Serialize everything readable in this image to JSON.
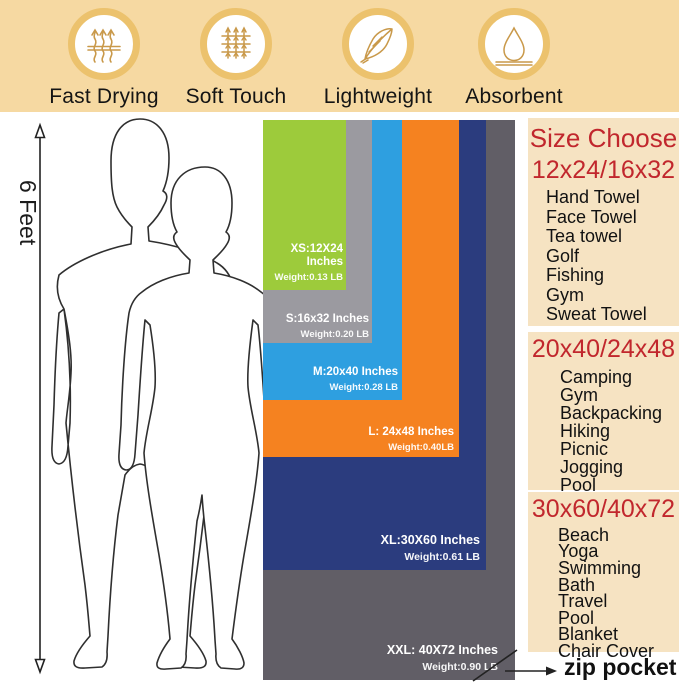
{
  "banner": {
    "features": [
      {
        "label": "Fast Drying",
        "icon": "steam-icon"
      },
      {
        "label": "Soft Touch",
        "icon": "weave-icon"
      },
      {
        "label": "Lightweight",
        "icon": "feather-icon"
      },
      {
        "label": "Absorbent",
        "icon": "droplet-icon"
      }
    ]
  },
  "scale": {
    "label": "6 Feet"
  },
  "towels": [
    {
      "name": "XS",
      "size_line": "XS:12X24 Inches",
      "weight_line": "Weight:0.13 LB",
      "color": "#9dcb3b"
    },
    {
      "name": "S",
      "size_line": "S:16x32 Inches",
      "weight_line": "Weight:0.20 LB",
      "color": "#9b9aa0"
    },
    {
      "name": "M",
      "size_line": "M:20x40 Inches",
      "weight_line": "Weight:0.28 LB",
      "color": "#2e9fe0"
    },
    {
      "name": "L",
      "size_line": "L: 24x48 Inches",
      "weight_line": "Weight:0.40LB",
      "color": "#f58220"
    },
    {
      "name": "XL",
      "size_line": "XL:30X60 Inches",
      "weight_line": "Weight:0.61 LB",
      "color": "#2b3c7e"
    },
    {
      "name": "XXL",
      "size_line": "XXL: 40X72 Inches",
      "weight_line": "Weight:0.90 LB",
      "color": "#615e66"
    }
  ],
  "guide": {
    "title": "Size Choose",
    "groups": [
      {
        "heading": "12x24/16x32",
        "items": [
          "Hand Towel",
          "Face Towel",
          "Tea towel",
          "Golf",
          "Fishing",
          "Gym",
          "Sweat Towel"
        ]
      },
      {
        "heading": "20x40/24x48",
        "items": [
          "Camping",
          "Gym",
          "Backpacking",
          "Hiking",
          "Picnic",
          "Jogging",
          "Pool"
        ]
      },
      {
        "heading": "30x60/40x72",
        "items": [
          "Beach",
          "Yoga",
          "Swimming",
          "Bath",
          "Travel",
          "Pool",
          "Blanket",
          "Chair Cover"
        ]
      }
    ]
  },
  "zip_label": "zip pocket",
  "palette": {
    "banner_bg": "#f6d9a2",
    "panel_bg": "#f6e3c2",
    "accent_red": "#c1272d",
    "icon_gold": "#c9994a",
    "ring_gold": "#ecc26d"
  }
}
